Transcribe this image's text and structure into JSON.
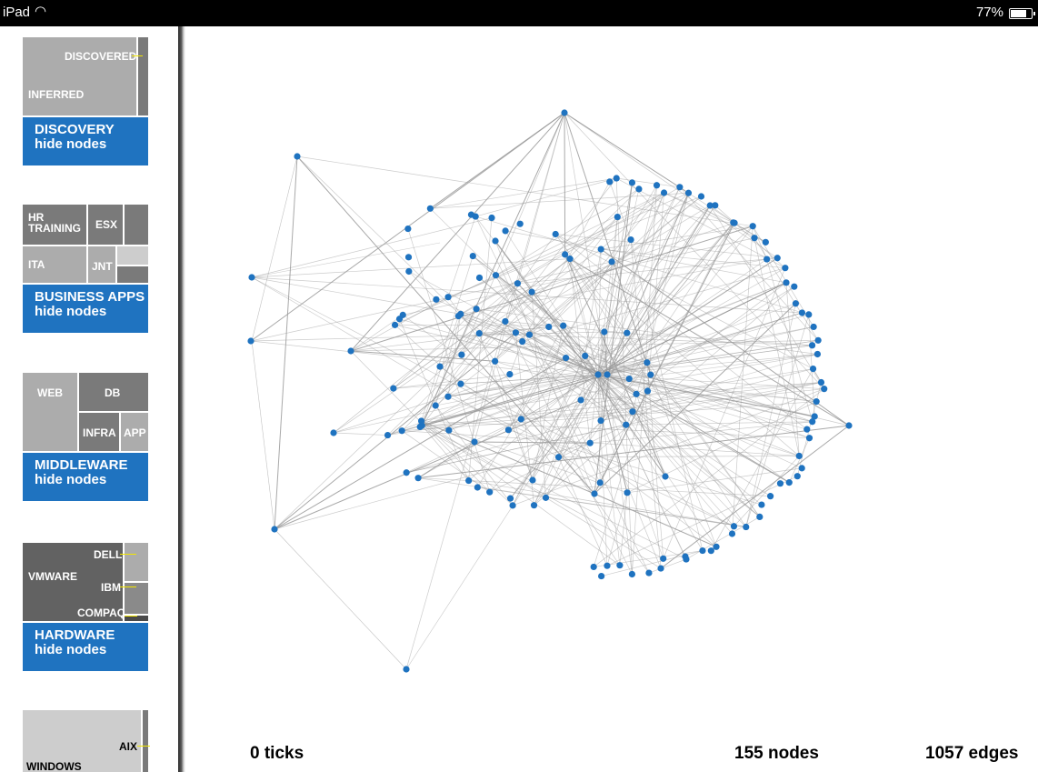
{
  "status_bar": {
    "carrier": "iPad",
    "wifi_icon": "wifi-icon",
    "battery_percent": "77%",
    "battery_level": 0.77,
    "battery_icon": "battery-icon"
  },
  "sidebar": {
    "discovery": {
      "labels": [
        "DISCOVERED",
        "INFERRED"
      ],
      "button_title": "DISCOVERY",
      "button_sub": "hide nodes"
    },
    "business_apps": {
      "labels": [
        "HR\nTRAINING",
        "ESX",
        "ITA",
        "JNT"
      ],
      "button_title": "BUSINESS APPS",
      "button_sub": "hide nodes"
    },
    "middleware": {
      "labels": [
        "WEB",
        "DB",
        "INFRA",
        "APP"
      ],
      "button_title": "MIDDLEWARE",
      "button_sub": "hide nodes"
    },
    "hardware": {
      "labels": [
        "VMWARE",
        "DELL",
        "IBM",
        "COMPAQ"
      ],
      "button_title": "HARDWARE",
      "button_sub": "hide nodes"
    },
    "os": {
      "labels": [
        "AIX",
        "WINDOWS"
      ]
    }
  },
  "graph": {
    "node_color": "#1f73c0",
    "edge_color": "#9a9a9a"
  },
  "footer": {
    "ticks": "0 ticks",
    "nodes": "155 nodes",
    "edges": "1057 edges"
  },
  "colors": {
    "accent": "#1f73c0",
    "highlight": "#f2e600"
  }
}
